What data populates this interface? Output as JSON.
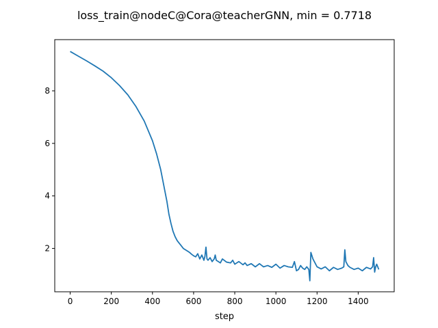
{
  "chart_data": {
    "type": "line",
    "title": "loss_train@nodeC@Cora@teacherGNN, min = 0.7718",
    "xlabel": "step",
    "ylabel": "",
    "xlim": [
      -75,
      1575
    ],
    "ylim": [
      0.35,
      9.95
    ],
    "grid": false,
    "legend": "none",
    "xticks": [
      0,
      200,
      400,
      600,
      800,
      1000,
      1200,
      1400
    ],
    "yticks": [
      2,
      4,
      6,
      8
    ],
    "series": [
      {
        "color": "#1f77b4",
        "x": [
          0,
          40,
          80,
          120,
          160,
          200,
          240,
          280,
          320,
          360,
          400,
          420,
          440,
          460,
          470,
          480,
          490,
          500,
          510,
          520,
          530,
          540,
          550,
          560,
          570,
          580,
          590,
          600,
          610,
          620,
          630,
          640,
          650,
          655,
          660,
          665,
          670,
          680,
          690,
          700,
          705,
          710,
          720,
          730,
          740,
          760,
          780,
          790,
          800,
          820,
          840,
          850,
          860,
          880,
          900,
          920,
          940,
          960,
          980,
          1000,
          1020,
          1040,
          1060,
          1080,
          1090,
          1100,
          1110,
          1120,
          1130,
          1140,
          1150,
          1160,
          1165,
          1170,
          1180,
          1190,
          1200,
          1220,
          1240,
          1260,
          1280,
          1300,
          1320,
          1330,
          1335,
          1340,
          1350,
          1360,
          1380,
          1400,
          1420,
          1440,
          1460,
          1470,
          1475,
          1480,
          1485,
          1490,
          1500
        ],
        "y": [
          9.5,
          9.32,
          9.14,
          8.95,
          8.75,
          8.5,
          8.2,
          7.85,
          7.4,
          6.85,
          6.1,
          5.6,
          5.0,
          4.2,
          3.8,
          3.3,
          2.95,
          2.65,
          2.45,
          2.3,
          2.2,
          2.1,
          2.0,
          1.95,
          1.9,
          1.85,
          1.78,
          1.72,
          1.68,
          1.8,
          1.6,
          1.75,
          1.55,
          1.7,
          2.05,
          1.6,
          1.55,
          1.65,
          1.5,
          1.6,
          1.75,
          1.55,
          1.5,
          1.45,
          1.6,
          1.48,
          1.45,
          1.55,
          1.4,
          1.5,
          1.38,
          1.45,
          1.35,
          1.42,
          1.3,
          1.42,
          1.3,
          1.35,
          1.28,
          1.4,
          1.25,
          1.35,
          1.3,
          1.28,
          1.5,
          1.15,
          1.2,
          1.35,
          1.25,
          1.2,
          1.3,
          1.2,
          0.77,
          1.85,
          1.6,
          1.45,
          1.3,
          1.22,
          1.3,
          1.15,
          1.28,
          1.2,
          1.25,
          1.3,
          1.95,
          1.5,
          1.35,
          1.28,
          1.2,
          1.25,
          1.15,
          1.28,
          1.22,
          1.3,
          1.65,
          1.1,
          1.3,
          1.4,
          1.2
        ]
      }
    ]
  }
}
